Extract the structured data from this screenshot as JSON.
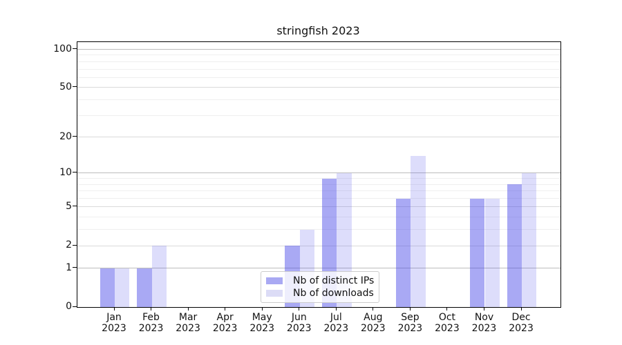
{
  "title": "stringfish 2023",
  "chart_data": {
    "type": "bar",
    "title": "stringfish 2023",
    "categories": [
      "Jan",
      "Feb",
      "Mar",
      "Apr",
      "May",
      "Jun",
      "Jul",
      "Aug",
      "Sep",
      "Oct",
      "Nov",
      "Dec"
    ],
    "category_year": "2023",
    "series": [
      {
        "name": "Nb of distinct IPs",
        "color": "rgba(73,73,232,0.47)",
        "swatch_color": "#a9a9f3",
        "values": [
          1,
          1,
          0,
          0,
          0,
          2,
          9,
          0,
          6,
          0,
          6,
          8
        ]
      },
      {
        "name": "Nb of downloads",
        "color": "rgba(73,73,232,0.19)",
        "swatch_color": "#dcdcf6",
        "values": [
          1,
          2,
          0,
          0,
          0,
          3,
          10,
          0,
          14,
          0,
          6,
          10
        ]
      }
    ],
    "yscale": "log1p",
    "yticks": [
      0,
      1,
      2,
      5,
      10,
      20,
      50,
      100
    ],
    "minor_yticks": [
      3,
      4,
      6,
      7,
      8,
      9,
      30,
      40,
      60,
      70,
      80,
      90
    ],
    "decade_yticks": [
      1,
      10,
      100
    ],
    "ylim": [
      0,
      114
    ],
    "xlabel": "",
    "ylabel": "",
    "grid": true,
    "legend_position": "lower-center-inside",
    "frame_color": "#000000",
    "background_color": "#ffffff"
  }
}
